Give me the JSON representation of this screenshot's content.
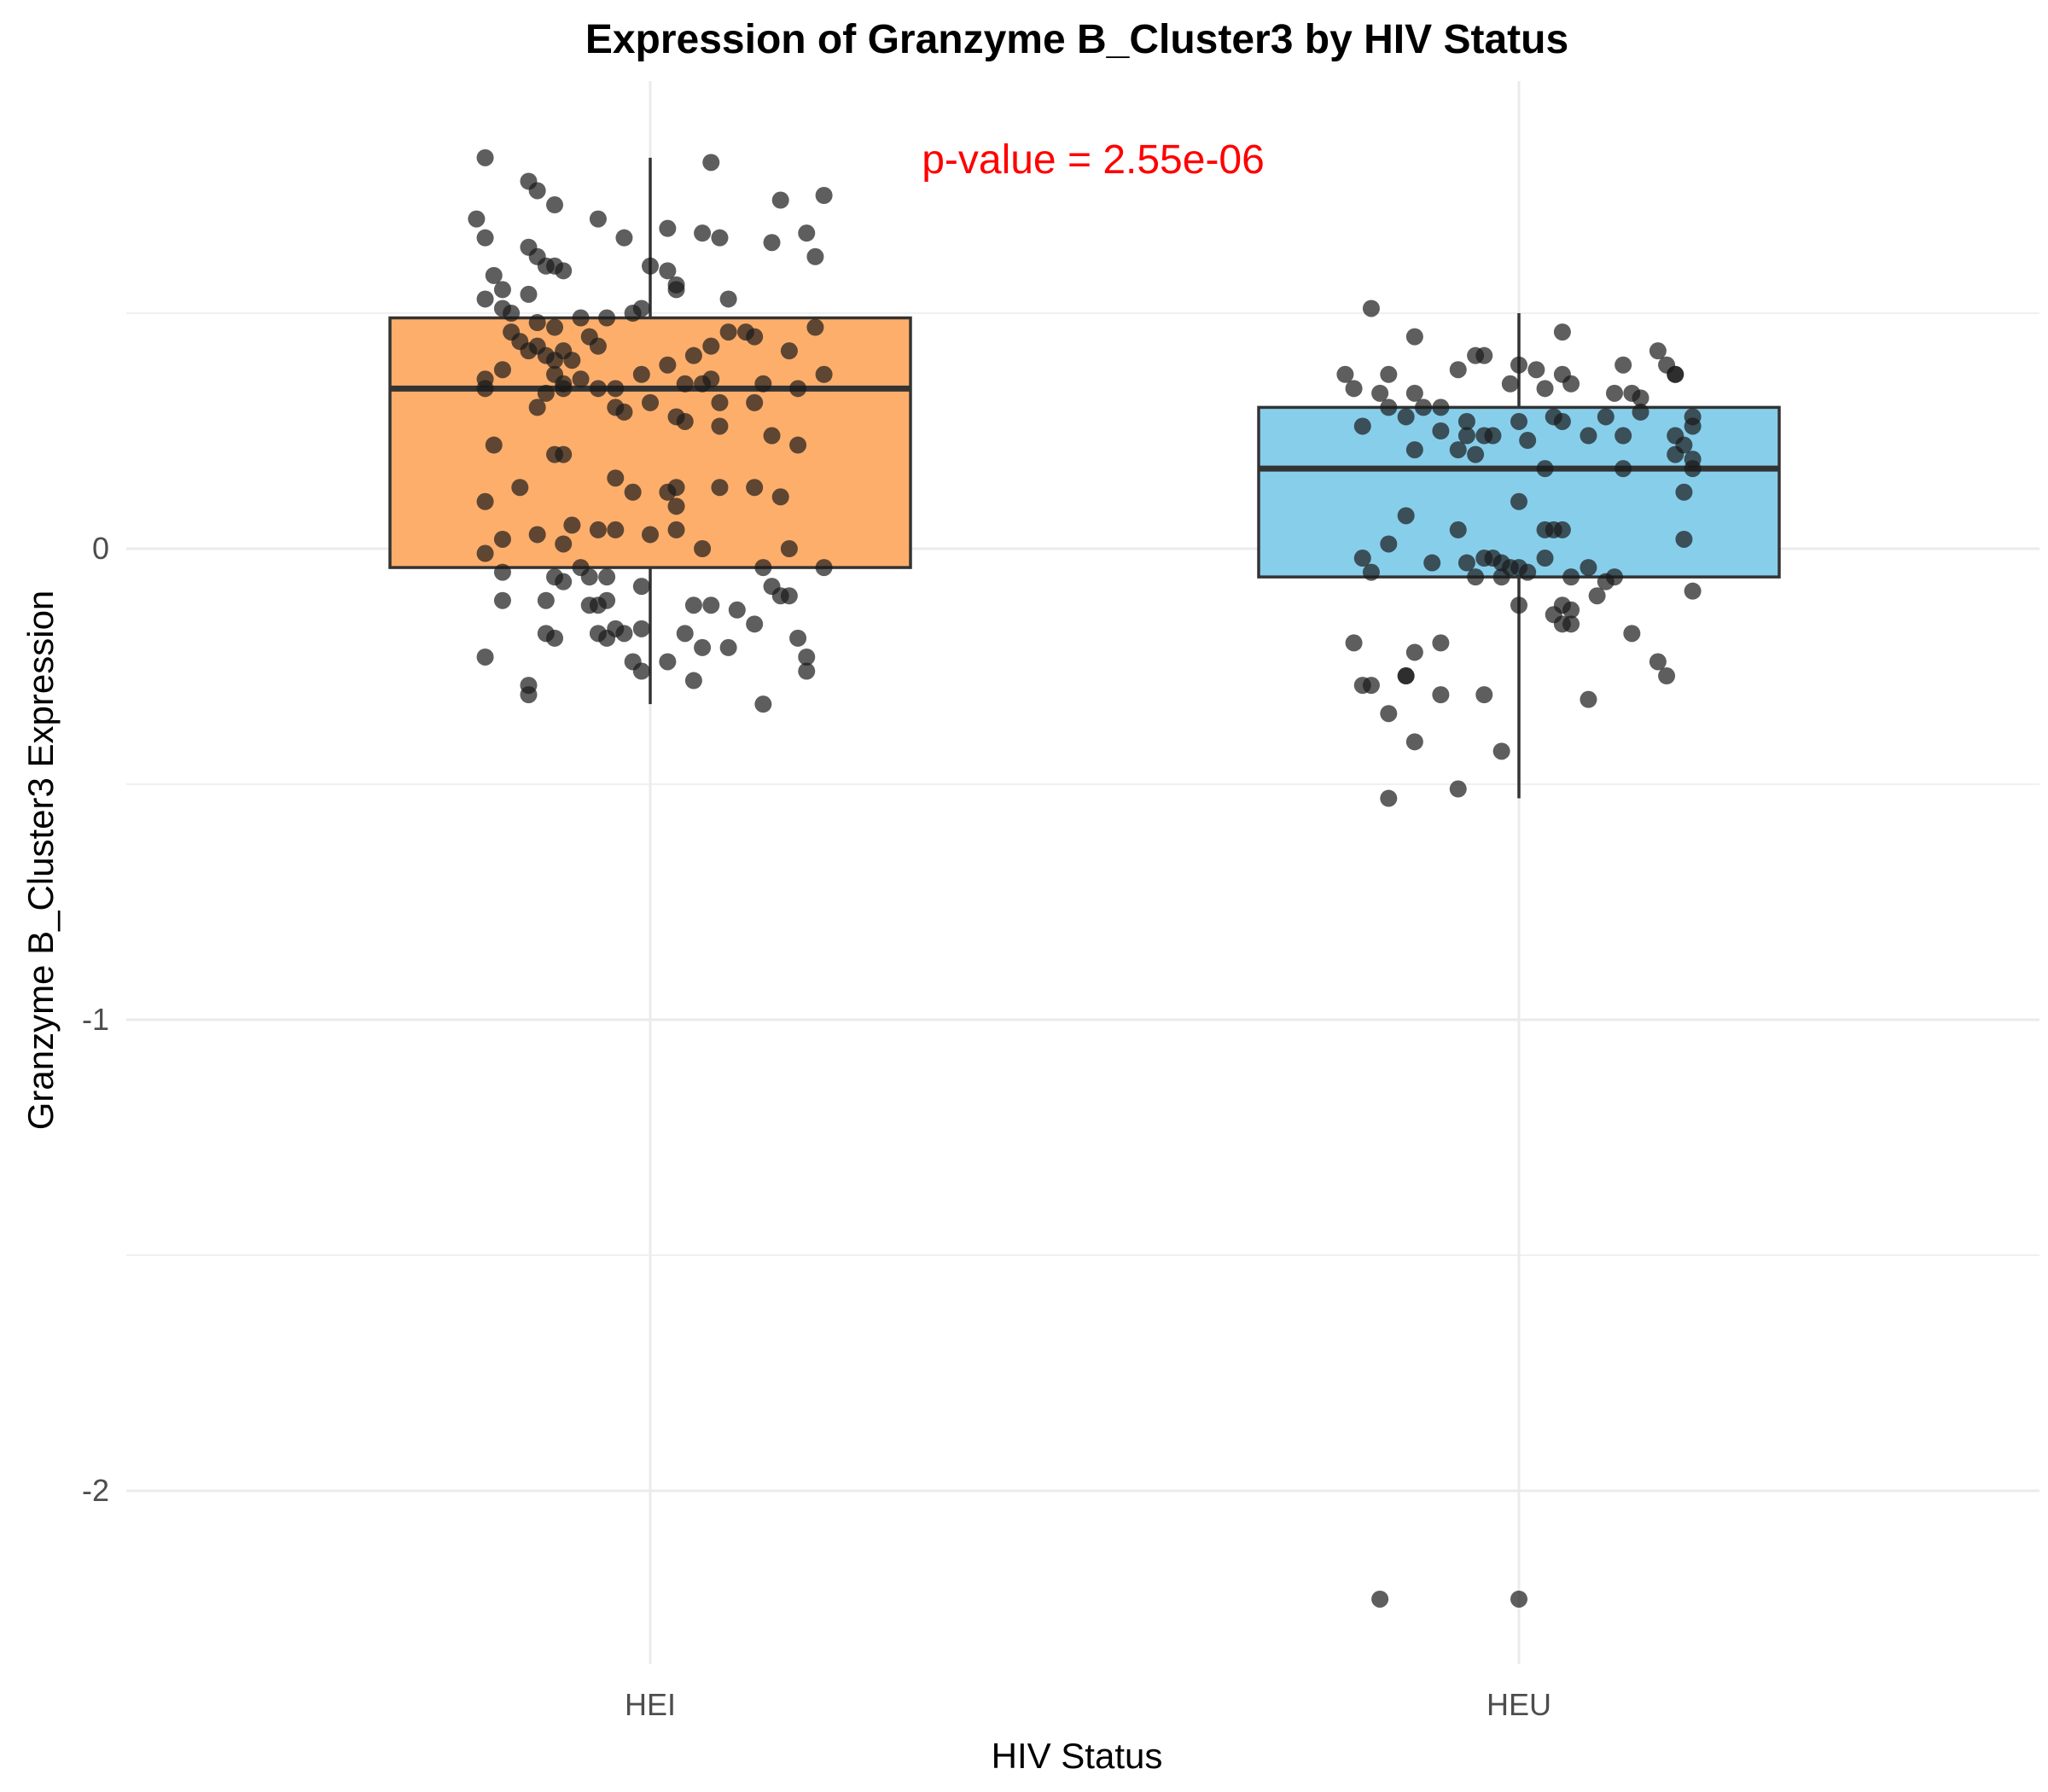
{
  "chart_data": {
    "type": "box",
    "title": "Expression of Granzyme B_Cluster3 by HIV Status",
    "xlabel": "HIV Status",
    "ylabel": "Granzyme B_Cluster3 Expression",
    "categories": [
      "HEI",
      "HEU"
    ],
    "ylim": [
      -2.4,
      1.0
    ],
    "yticks": [
      0,
      -1,
      -2
    ],
    "ytick_labels": [
      "0",
      "-1",
      "-2"
    ],
    "grid": true,
    "legend": "none",
    "colors": {
      "HEI": "#fdae6b",
      "HEU": "#87ceeb",
      "points": "#1a1a1a",
      "annotation": "#ff0000",
      "grid": "#ebebeb"
    },
    "annotation": {
      "text": "p-value = 2.55e-06",
      "x_category_offset": 1.5,
      "y": 0.83
    },
    "boxes": [
      {
        "name": "HEI",
        "q1": -0.04,
        "median": 0.34,
        "q3": 0.49,
        "whisker_low": -0.33,
        "whisker_high": 0.83
      },
      {
        "name": "HEU",
        "q1": -0.06,
        "median": 0.17,
        "q3": 0.3,
        "whisker_low": -0.53,
        "whisker_high": 0.5
      }
    ],
    "points": {
      "HEI": [
        [
          -0.19,
          0.83
        ],
        [
          -0.14,
          0.78
        ],
        [
          0.07,
          0.82
        ],
        [
          -0.13,
          0.76
        ],
        [
          0.15,
          0.74
        ],
        [
          0.2,
          0.75
        ],
        [
          -0.11,
          0.73
        ],
        [
          -0.2,
          0.7
        ],
        [
          -0.19,
          0.66
        ],
        [
          -0.06,
          0.7
        ],
        [
          -0.03,
          0.66
        ],
        [
          0.02,
          0.68
        ],
        [
          0.06,
          0.67
        ],
        [
          0.08,
          0.66
        ],
        [
          0.14,
          0.65
        ],
        [
          0.18,
          0.67
        ],
        [
          0.19,
          0.62
        ],
        [
          -0.14,
          0.64
        ],
        [
          -0.13,
          0.62
        ],
        [
          -0.12,
          0.6
        ],
        [
          -0.18,
          0.58
        ],
        [
          -0.17,
          0.55
        ],
        [
          -0.14,
          0.54
        ],
        [
          -0.11,
          0.6
        ],
        [
          0.0,
          0.6
        ],
        [
          0.02,
          0.59
        ],
        [
          -0.1,
          0.59
        ],
        [
          0.03,
          0.56
        ],
        [
          0.03,
          0.55
        ],
        [
          0.09,
          0.53
        ],
        [
          -0.19,
          0.53
        ],
        [
          -0.17,
          0.51
        ],
        [
          -0.16,
          0.5
        ],
        [
          -0.13,
          0.48
        ],
        [
          -0.11,
          0.47
        ],
        [
          -0.08,
          0.49
        ],
        [
          -0.05,
          0.49
        ],
        [
          -0.02,
          0.5
        ],
        [
          -0.01,
          0.51
        ],
        [
          0.09,
          0.46
        ],
        [
          0.11,
          0.46
        ],
        [
          0.12,
          0.45
        ],
        [
          0.19,
          0.47
        ],
        [
          -0.16,
          0.46
        ],
        [
          -0.15,
          0.44
        ],
        [
          -0.14,
          0.42
        ],
        [
          -0.13,
          0.43
        ],
        [
          -0.12,
          0.41
        ],
        [
          -0.11,
          0.4
        ],
        [
          -0.1,
          0.42
        ],
        [
          -0.09,
          0.4
        ],
        [
          -0.07,
          0.45
        ],
        [
          -0.06,
          0.43
        ],
        [
          0.07,
          0.43
        ],
        [
          0.05,
          0.41
        ],
        [
          0.02,
          0.39
        ],
        [
          0.16,
          0.42
        ],
        [
          -0.17,
          0.38
        ],
        [
          -0.19,
          0.36
        ],
        [
          -0.11,
          0.37
        ],
        [
          -0.1,
          0.35
        ],
        [
          -0.08,
          0.36
        ],
        [
          -0.19,
          0.34
        ],
        [
          -0.12,
          0.33
        ],
        [
          -0.1,
          0.34
        ],
        [
          -0.06,
          0.34
        ],
        [
          -0.04,
          0.34
        ],
        [
          -0.01,
          0.37
        ],
        [
          0.04,
          0.35
        ],
        [
          0.06,
          0.35
        ],
        [
          0.07,
          0.36
        ],
        [
          0.13,
          0.35
        ],
        [
          0.17,
          0.34
        ],
        [
          0.2,
          0.37
        ],
        [
          -0.13,
          0.3
        ],
        [
          -0.04,
          0.3
        ],
        [
          0.0,
          0.31
        ],
        [
          0.08,
          0.31
        ],
        [
          0.12,
          0.31
        ],
        [
          0.03,
          0.28
        ],
        [
          0.04,
          0.27
        ],
        [
          -0.03,
          0.29
        ],
        [
          0.08,
          0.26
        ],
        [
          0.14,
          0.24
        ],
        [
          -0.18,
          0.22
        ],
        [
          -0.11,
          0.2
        ],
        [
          -0.1,
          0.2
        ],
        [
          -0.04,
          0.15
        ],
        [
          -0.02,
          0.12
        ],
        [
          0.02,
          0.12
        ],
        [
          0.03,
          0.13
        ],
        [
          0.08,
          0.13
        ],
        [
          0.12,
          0.13
        ],
        [
          0.15,
          0.11
        ],
        [
          0.17,
          0.22
        ],
        [
          -0.19,
          0.1
        ],
        [
          -0.15,
          0.13
        ],
        [
          0.03,
          0.09
        ],
        [
          -0.09,
          0.05
        ],
        [
          -0.06,
          0.04
        ],
        [
          -0.04,
          0.04
        ],
        [
          0.03,
          0.04
        ],
        [
          0.0,
          0.03
        ],
        [
          -0.17,
          0.02
        ],
        [
          -0.13,
          0.03
        ],
        [
          -0.1,
          0.01
        ],
        [
          -0.19,
          -0.01
        ],
        [
          -0.08,
          -0.04
        ],
        [
          0.06,
          0.0
        ],
        [
          0.16,
          0.0
        ],
        [
          0.13,
          -0.04
        ],
        [
          0.2,
          -0.04
        ],
        [
          -0.17,
          -0.05
        ],
        [
          -0.11,
          -0.06
        ],
        [
          -0.07,
          -0.06
        ],
        [
          -0.05,
          -0.06
        ],
        [
          -0.1,
          -0.07
        ],
        [
          0.14,
          -0.08
        ],
        [
          0.15,
          -0.1
        ],
        [
          0.16,
          -0.1
        ],
        [
          -0.17,
          -0.11
        ],
        [
          -0.12,
          -0.11
        ],
        [
          -0.07,
          -0.12
        ],
        [
          -0.06,
          -0.12
        ],
        [
          -0.05,
          -0.11
        ],
        [
          -0.01,
          -0.08
        ],
        [
          0.05,
          -0.12
        ],
        [
          0.07,
          -0.12
        ],
        [
          0.1,
          -0.13
        ],
        [
          0.12,
          -0.16
        ],
        [
          -0.12,
          -0.18
        ],
        [
          -0.11,
          -0.19
        ],
        [
          -0.06,
          -0.18
        ],
        [
          -0.05,
          -0.19
        ],
        [
          -0.04,
          -0.17
        ],
        [
          -0.03,
          -0.18
        ],
        [
          -0.01,
          -0.17
        ],
        [
          0.04,
          -0.18
        ],
        [
          0.06,
          -0.21
        ],
        [
          0.09,
          -0.21
        ],
        [
          0.17,
          -0.19
        ],
        [
          -0.19,
          -0.23
        ],
        [
          -0.02,
          -0.24
        ],
        [
          -0.01,
          -0.26
        ],
        [
          0.02,
          -0.24
        ],
        [
          0.05,
          -0.28
        ],
        [
          0.18,
          -0.23
        ],
        [
          0.18,
          -0.26
        ],
        [
          -0.14,
          -0.31
        ],
        [
          0.13,
          -0.33
        ],
        [
          -0.14,
          -0.29
        ]
      ],
      "HEU": [
        [
          -0.17,
          0.51
        ],
        [
          -0.12,
          0.45
        ],
        [
          -0.05,
          0.41
        ],
        [
          -0.04,
          0.41
        ],
        [
          0.05,
          0.46
        ],
        [
          0.16,
          0.42
        ],
        [
          0.17,
          0.39
        ],
        [
          -0.2,
          0.37
        ],
        [
          -0.15,
          0.37
        ],
        [
          -0.07,
          0.38
        ],
        [
          0.0,
          0.39
        ],
        [
          0.02,
          0.38
        ],
        [
          0.05,
          0.37
        ],
        [
          0.12,
          0.39
        ],
        [
          0.18,
          0.37
        ],
        [
          0.18,
          0.37
        ],
        [
          -0.19,
          0.34
        ],
        [
          -0.16,
          0.33
        ],
        [
          -0.12,
          0.33
        ],
        [
          -0.01,
          0.35
        ],
        [
          0.03,
          0.34
        ],
        [
          0.06,
          0.35
        ],
        [
          0.11,
          0.33
        ],
        [
          0.13,
          0.33
        ],
        [
          0.14,
          0.32
        ],
        [
          -0.15,
          0.3
        ],
        [
          -0.11,
          0.3
        ],
        [
          -0.09,
          0.3
        ],
        [
          -0.13,
          0.28
        ],
        [
          -0.06,
          0.27
        ],
        [
          0.0,
          0.27
        ],
        [
          0.04,
          0.28
        ],
        [
          0.1,
          0.28
        ],
        [
          0.14,
          0.29
        ],
        [
          0.2,
          0.28
        ],
        [
          -0.18,
          0.26
        ],
        [
          -0.09,
          0.25
        ],
        [
          -0.06,
          0.24
        ],
        [
          -0.04,
          0.24
        ],
        [
          -0.03,
          0.24
        ],
        [
          0.05,
          0.27
        ],
        [
          0.08,
          0.24
        ],
        [
          0.12,
          0.24
        ],
        [
          0.18,
          0.24
        ],
        [
          0.2,
          0.26
        ],
        [
          0.19,
          0.22
        ],
        [
          0.01,
          0.23
        ],
        [
          -0.07,
          0.21
        ],
        [
          -0.05,
          0.2
        ],
        [
          -0.12,
          0.21
        ],
        [
          0.18,
          0.2
        ],
        [
          0.2,
          0.19
        ],
        [
          0.12,
          0.17
        ],
        [
          0.2,
          0.17
        ],
        [
          0.03,
          0.17
        ],
        [
          0.19,
          0.12
        ],
        [
          0.0,
          0.1
        ],
        [
          -0.13,
          0.07
        ],
        [
          -0.07,
          0.04
        ],
        [
          -0.15,
          0.01
        ],
        [
          0.03,
          0.04
        ],
        [
          0.04,
          0.04
        ],
        [
          0.05,
          0.04
        ],
        [
          0.19,
          0.02
        ],
        [
          -0.06,
          -0.03
        ],
        [
          -0.04,
          -0.02
        ],
        [
          -0.03,
          -0.02
        ],
        [
          -0.02,
          -0.03
        ],
        [
          -0.01,
          -0.04
        ],
        [
          0.0,
          -0.04
        ],
        [
          0.01,
          -0.05
        ],
        [
          0.03,
          -0.02
        ],
        [
          -0.18,
          -0.02
        ],
        [
          -0.1,
          -0.03
        ],
        [
          -0.17,
          -0.05
        ],
        [
          -0.05,
          -0.06
        ],
        [
          -0.02,
          -0.06
        ],
        [
          0.06,
          -0.06
        ],
        [
          0.08,
          -0.04
        ],
        [
          0.1,
          -0.07
        ],
        [
          0.11,
          -0.06
        ],
        [
          0.09,
          -0.1
        ],
        [
          0.2,
          -0.09
        ],
        [
          0.05,
          -0.12
        ],
        [
          0.06,
          -0.13
        ],
        [
          0.04,
          -0.14
        ],
        [
          0.0,
          -0.12
        ],
        [
          0.05,
          -0.16
        ],
        [
          0.06,
          -0.16
        ],
        [
          0.13,
          -0.18
        ],
        [
          -0.19,
          -0.2
        ],
        [
          -0.12,
          -0.22
        ],
        [
          -0.09,
          -0.2
        ],
        [
          0.16,
          -0.24
        ],
        [
          0.17,
          -0.27
        ],
        [
          -0.13,
          -0.27
        ],
        [
          -0.13,
          -0.27
        ],
        [
          -0.18,
          -0.29
        ],
        [
          -0.17,
          -0.29
        ],
        [
          -0.09,
          -0.31
        ],
        [
          -0.04,
          -0.31
        ],
        [
          0.08,
          -0.32
        ],
        [
          -0.15,
          -0.35
        ],
        [
          -0.12,
          -0.41
        ],
        [
          -0.02,
          -0.43
        ],
        [
          -0.15,
          -0.53
        ],
        [
          -0.07,
          -0.51
        ],
        [
          -0.16,
          -2.23
        ],
        [
          0.0,
          -2.23
        ]
      ]
    }
  }
}
